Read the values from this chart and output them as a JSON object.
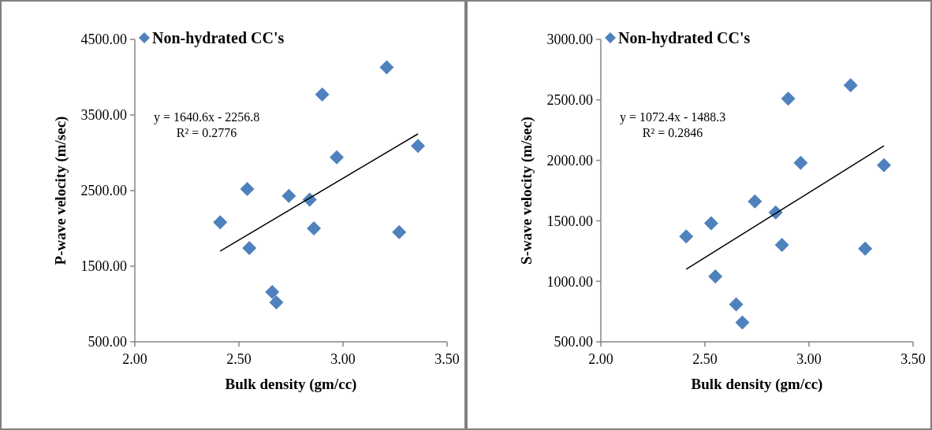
{
  "chart_data": [
    {
      "type": "scatter",
      "xlabel": "Bulk density (gm/cc)",
      "ylabel": "P-wave velocity (m/sec)",
      "xlim": [
        2,
        3.5
      ],
      "xticks": [
        {
          "value": 2,
          "label": "2.00"
        },
        {
          "value": 2.5,
          "label": "2.50"
        },
        {
          "value": 3,
          "label": "3.00"
        },
        {
          "value": 3.5,
          "label": "3.50"
        }
      ],
      "ylim": [
        500,
        4500
      ],
      "yticks": [
        {
          "value": 500,
          "label": "500.00"
        },
        {
          "value": 1500,
          "label": "1500.00"
        },
        {
          "value": 2500,
          "label": "2500.00"
        },
        {
          "value": 3500,
          "label": "3500.00"
        },
        {
          "value": 4500,
          "label": "4500.00"
        }
      ],
      "grid": false,
      "legend": "top left",
      "annotations": [
        "y = 1640.6x - 2256.8",
        "R² = 0.2776"
      ],
      "series": [
        {
          "name": "Non-hydrated CC's",
          "color": "#4f81bd",
          "marker": "diamond",
          "x": [
            2.41,
            2.54,
            2.55,
            2.66,
            2.68,
            2.74,
            2.84,
            2.86,
            2.9,
            2.97,
            3.21,
            3.27,
            3.36
          ],
          "values": [
            2080,
            2520,
            1740,
            1160,
            1020,
            2430,
            2380,
            2000,
            3770,
            2940,
            4130,
            1950,
            3090
          ]
        },
        {
          "type": "line",
          "color": "#000000",
          "marker": "none",
          "x": [
            2.41,
            3.36
          ],
          "values": [
            1700,
            3250
          ]
        }
      ]
    },
    {
      "type": "scatter",
      "xlabel": "Bulk density (gm/cc)",
      "ylabel": "S-wave velocity (m/sec)",
      "xlim": [
        2,
        3.5
      ],
      "xticks": [
        {
          "value": 2,
          "label": "2.00"
        },
        {
          "value": 2.5,
          "label": "2.50"
        },
        {
          "value": 3,
          "label": "3.00"
        },
        {
          "value": 3.5,
          "label": "3.50"
        }
      ],
      "ylim": [
        500,
        3000
      ],
      "yticks": [
        {
          "value": 500,
          "label": "500.00"
        },
        {
          "value": 1000,
          "label": "1000.00"
        },
        {
          "value": 1500,
          "label": "1500.00"
        },
        {
          "value": 2000,
          "label": "2000.00"
        },
        {
          "value": 2500,
          "label": "2500.00"
        },
        {
          "value": 3000,
          "label": "3000.00"
        }
      ],
      "grid": false,
      "legend": "top left",
      "annotations": [
        "y = 1072.4x - 1488.3",
        "R² = 0.2846"
      ],
      "series": [
        {
          "name": "Non-hydrated CC's",
          "color": "#4f81bd",
          "marker": "diamond",
          "x": [
            2.41,
            2.53,
            2.55,
            2.65,
            2.68,
            2.74,
            2.84,
            2.87,
            2.9,
            2.96,
            3.2,
            3.27,
            3.36
          ],
          "values": [
            1370,
            1480,
            1040,
            810,
            660,
            1660,
            1570,
            1300,
            2510,
            1980,
            2620,
            1270,
            1960
          ]
        },
        {
          "type": "line",
          "color": "#000000",
          "marker": "none",
          "x": [
            2.41,
            3.36
          ],
          "values": [
            1100,
            2120
          ]
        }
      ]
    }
  ]
}
